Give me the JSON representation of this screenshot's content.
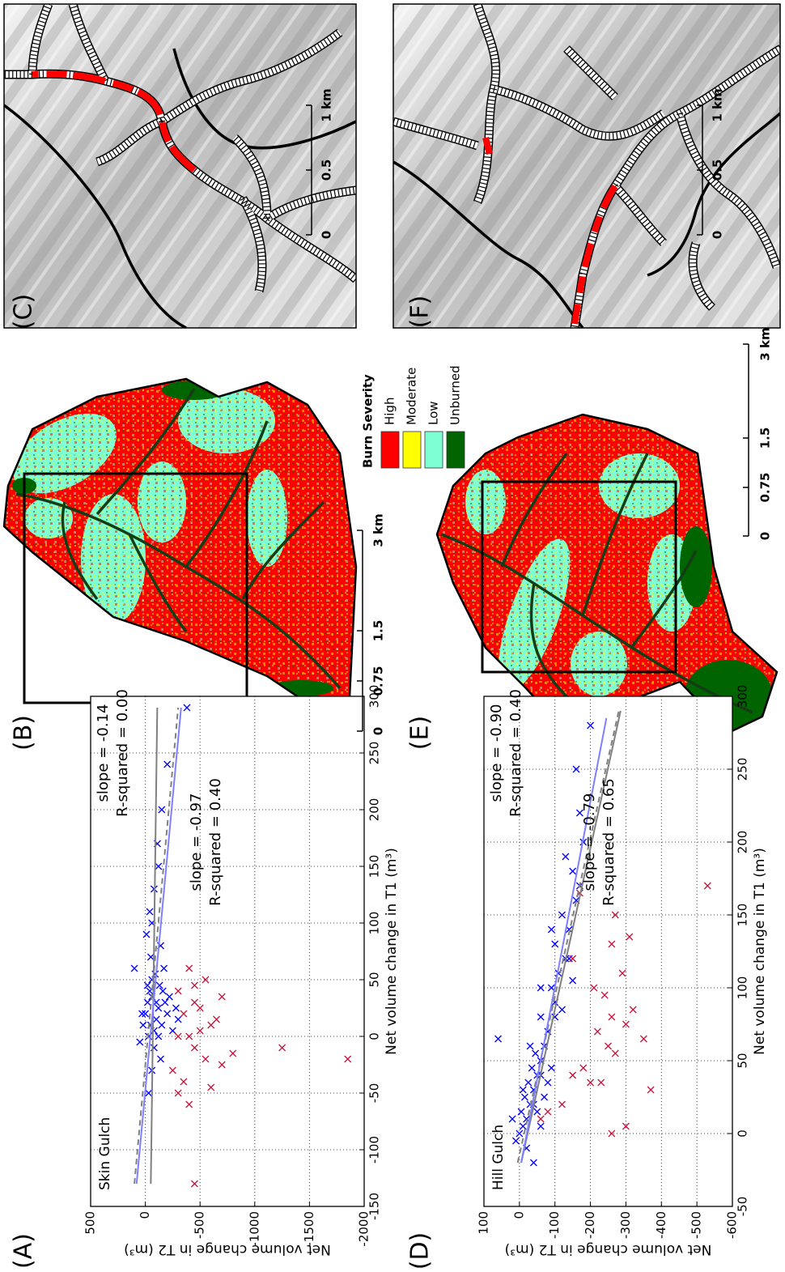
{
  "chart_data": [
    {
      "type": "scatter",
      "title": "Skin Gulch",
      "xlabel": "Net volume change in T1 (m³)",
      "ylabel": "Net volume change in T2 (m³)",
      "xlim": [
        -150,
        300
      ],
      "ylim": [
        -2000,
        500
      ],
      "xticks": [
        -150,
        -100,
        -50,
        0,
        50,
        100,
        150,
        200,
        250,
        300
      ],
      "yticks": [
        -2000,
        -1500,
        -1000,
        -500,
        0,
        500
      ],
      "grid": true,
      "series": [
        {
          "color": "#0000ff",
          "marker": "x",
          "x": [
            60,
            -5,
            10,
            20,
            30,
            40,
            50,
            5,
            15,
            25,
            35,
            45,
            0,
            10,
            20,
            30,
            -10,
            5,
            25,
            40,
            55,
            70,
            90,
            110,
            130,
            150,
            20,
            10,
            30,
            0,
            -20,
            -30,
            -50,
            15,
            35,
            45,
            60,
            80,
            100,
            240,
            290,
            200,
            170
          ],
          "values": [
            100,
            50,
            20,
            0,
            -20,
            -40,
            -60,
            -80,
            -100,
            -120,
            -60,
            -20,
            -30,
            -150,
            -200,
            -100,
            -80,
            -250,
            -280,
            -160,
            -90,
            -50,
            -10,
            -40,
            -80,
            -120,
            30,
            -50,
            -180,
            -120,
            -140,
            -60,
            -30,
            -300,
            -220,
            -130,
            -170,
            -140,
            -60,
            -200,
            -380,
            -150,
            -110
          ]
        },
        {
          "color": "#c8143c",
          "marker": "x",
          "x": [
            -130,
            -60,
            -50,
            -40,
            -30,
            -20,
            -10,
            0,
            5,
            10,
            20,
            30,
            40,
            50,
            60,
            -45,
            -25,
            -15,
            15,
            25,
            45,
            -10,
            -20,
            0,
            35
          ],
          "values": [
            -450,
            -400,
            -300,
            -350,
            -250,
            -550,
            -450,
            -400,
            -500,
            -600,
            -350,
            -450,
            -300,
            -550,
            -400,
            -600,
            -700,
            -800,
            -650,
            -500,
            -450,
            -1250,
            -1850,
            -300,
            -700
          ]
        }
      ],
      "fits": [
        {
          "color": "#808080",
          "dashed": false,
          "x": [
            -130,
            290
          ],
          "values": [
            -50,
            -109
          ]
        },
        {
          "color": "#808080",
          "dashed": true,
          "x": [
            -130,
            290
          ],
          "values": [
            100,
            -300
          ]
        },
        {
          "color": "#7f7fff",
          "dashed": false,
          "x": [
            -130,
            290
          ],
          "values": [
            80,
            -327
          ]
        }
      ],
      "annotations": [
        {
          "text": "slope = -0.14",
          "color": "#000000"
        },
        {
          "text": "R-squared = 0.00",
          "color": "#000000"
        },
        {
          "text": "slope = -0.97",
          "color": "#0000ff"
        },
        {
          "text": "R-squared = 0.40",
          "color": "#0000ff"
        }
      ]
    },
    {
      "type": "scatter",
      "title": "Hill Gulch",
      "xlabel": "Net volume change in T1 (m³)",
      "ylabel": "Net volume change in T2 (m³)",
      "xlim": [
        -50,
        300
      ],
      "ylim": [
        -600,
        100
      ],
      "xticks": [
        -50,
        0,
        50,
        100,
        150,
        200,
        250,
        300
      ],
      "yticks": [
        -600,
        -500,
        -400,
        -300,
        -200,
        -100,
        0,
        100
      ],
      "grid": true,
      "series": [
        {
          "color": "#0000ff",
          "marker": "x",
          "x": [
            0,
            5,
            10,
            15,
            20,
            25,
            30,
            35,
            40,
            45,
            50,
            55,
            60,
            70,
            80,
            90,
            100,
            110,
            120,
            130,
            140,
            150,
            160,
            180,
            200,
            220,
            250,
            280,
            -10,
            -5,
            10,
            20,
            30,
            40,
            60,
            80,
            100,
            120,
            140,
            170,
            190,
            65,
            5,
            15,
            25,
            35,
            45,
            85,
            105,
            -20
          ],
          "values": [
            0,
            -10,
            -20,
            -5,
            -30,
            -15,
            -40,
            -25,
            -50,
            -35,
            -60,
            -45,
            -70,
            -80,
            -60,
            -100,
            -90,
            -110,
            -130,
            -100,
            -140,
            -120,
            -160,
            -150,
            -180,
            -170,
            -160,
            -200,
            -20,
            10,
            20,
            -40,
            -10,
            -60,
            -30,
            -100,
            -60,
            -140,
            -90,
            -170,
            -130,
            60,
            -60,
            -50,
            -70,
            -80,
            -90,
            -120,
            -150,
            -40
          ]
        },
        {
          "color": "#c8143c",
          "marker": "x",
          "x": [
            10,
            15,
            20,
            35,
            40,
            45,
            60,
            70,
            75,
            80,
            100,
            110,
            120,
            130,
            135,
            150,
            165,
            170,
            0,
            5,
            30,
            35,
            55,
            65,
            85,
            95
          ],
          "values": [
            -60,
            -80,
            -120,
            -200,
            -150,
            -180,
            -250,
            -220,
            -300,
            -260,
            -210,
            -290,
            -150,
            -260,
            -310,
            -270,
            -170,
            -530,
            -260,
            -300,
            -370,
            -230,
            -270,
            -350,
            -320,
            -240
          ]
        }
      ],
      "fits": [
        {
          "color": "#808080",
          "dashed": false,
          "x": [
            -20,
            290
          ],
          "values": [
            -5,
            -285
          ]
        },
        {
          "color": "#808080",
          "dashed": true,
          "x": [
            -20,
            290
          ],
          "values": [
            5,
            -280
          ]
        },
        {
          "color": "#7f7fff",
          "dashed": false,
          "x": [
            -20,
            285
          ],
          "values": [
            -5,
            -245
          ]
        }
      ],
      "annotations": [
        {
          "text": "slope = -0.90",
          "color": "#000000"
        },
        {
          "text": "R-squared = 0.40",
          "color": "#000000"
        },
        {
          "text": "slope = -0.79",
          "color": "#0000ff"
        },
        {
          "text": "R-squared = 0.65",
          "color": "#0000ff"
        }
      ]
    }
  ],
  "panel_labels": [
    "(A)",
    "(B)",
    "(C)",
    "(D)",
    "(E)",
    "(F)"
  ],
  "maps": {
    "legend": {
      "title": "Burn Severity",
      "items": [
        {
          "label": "High",
          "color": "#ff0000"
        },
        {
          "label": "Moderate",
          "color": "#ffff00"
        },
        {
          "label": "Low",
          "color": "#7fffd4"
        },
        {
          "label": "Unburned",
          "color": "#006400"
        }
      ]
    },
    "scale_bars": [
      {
        "labels": [
          "0",
          "0.75",
          "1.5",
          "3 km"
        ]
      },
      {
        "labels": [
          "0",
          "0.5",
          "1 km"
        ]
      },
      {
        "labels": [
          "0",
          "0.75",
          "1.5",
          "3 km"
        ]
      },
      {
        "labels": [
          "0",
          "0.5",
          "1 km"
        ]
      }
    ]
  }
}
